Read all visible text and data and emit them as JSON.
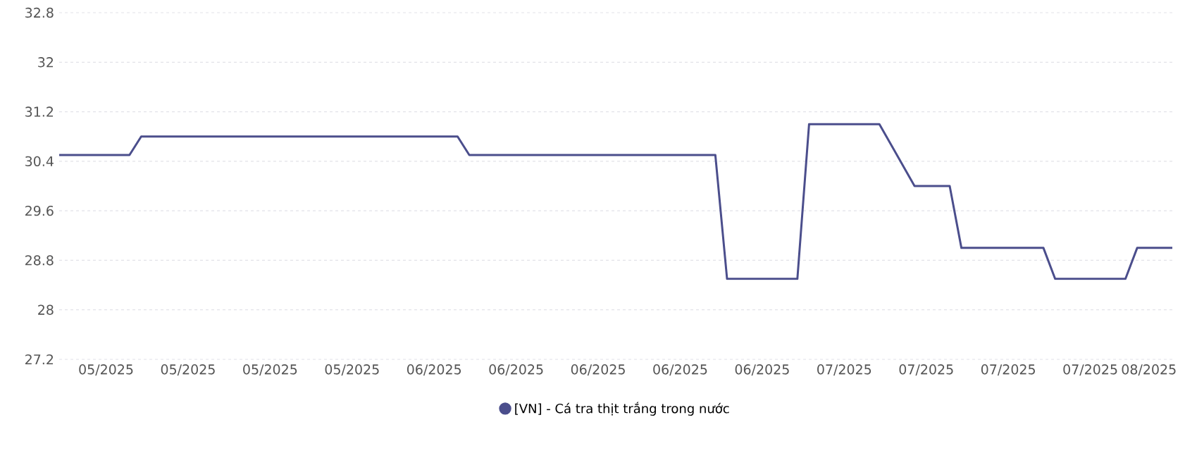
{
  "chart_data": {
    "type": "line",
    "x": [
      "2025-05-01",
      "2025-05-07",
      "2025-05-08",
      "2025-06-04",
      "2025-06-05",
      "2025-06-26",
      "2025-06-27",
      "2025-07-03",
      "2025-07-04",
      "2025-07-10",
      "2025-07-13",
      "2025-07-16",
      "2025-07-17",
      "2025-07-24",
      "2025-07-25",
      "2025-07-31",
      "2025-08-01",
      "2025-08-04"
    ],
    "series": [
      {
        "name": "[VN] - Cá tra thịt trắng trong nước",
        "color": "#4b4e8c",
        "values": [
          30.5,
          30.5,
          30.8,
          30.8,
          30.5,
          30.5,
          28.5,
          28.5,
          31.0,
          31.0,
          30.0,
          30.0,
          29.0,
          29.0,
          28.5,
          28.5,
          29.0,
          29.0
        ]
      }
    ],
    "xlim": [
      "2025-05-01",
      "2025-08-04"
    ],
    "xticks": [
      {
        "value": "2025-05-05",
        "label": "05/2025"
      },
      {
        "value": "2025-05-12",
        "label": "05/2025"
      },
      {
        "value": "2025-05-19",
        "label": "05/2025"
      },
      {
        "value": "2025-05-26",
        "label": "05/2025"
      },
      {
        "value": "2025-06-02",
        "label": "06/2025"
      },
      {
        "value": "2025-06-09",
        "label": "06/2025"
      },
      {
        "value": "2025-06-16",
        "label": "06/2025"
      },
      {
        "value": "2025-06-23",
        "label": "06/2025"
      },
      {
        "value": "2025-06-30",
        "label": "06/2025"
      },
      {
        "value": "2025-07-07",
        "label": "07/2025"
      },
      {
        "value": "2025-07-14",
        "label": "07/2025"
      },
      {
        "value": "2025-07-21",
        "label": "07/2025"
      },
      {
        "value": "2025-07-28",
        "label": "07/2025"
      },
      {
        "value": "2025-08-02",
        "label": "08/2025"
      }
    ],
    "ylim": [
      27.2,
      32.8
    ],
    "yticks": [
      27.2,
      28,
      28.8,
      29.6,
      30.4,
      31.2,
      32,
      32.8
    ],
    "grid": "y",
    "legend": "bottom"
  }
}
